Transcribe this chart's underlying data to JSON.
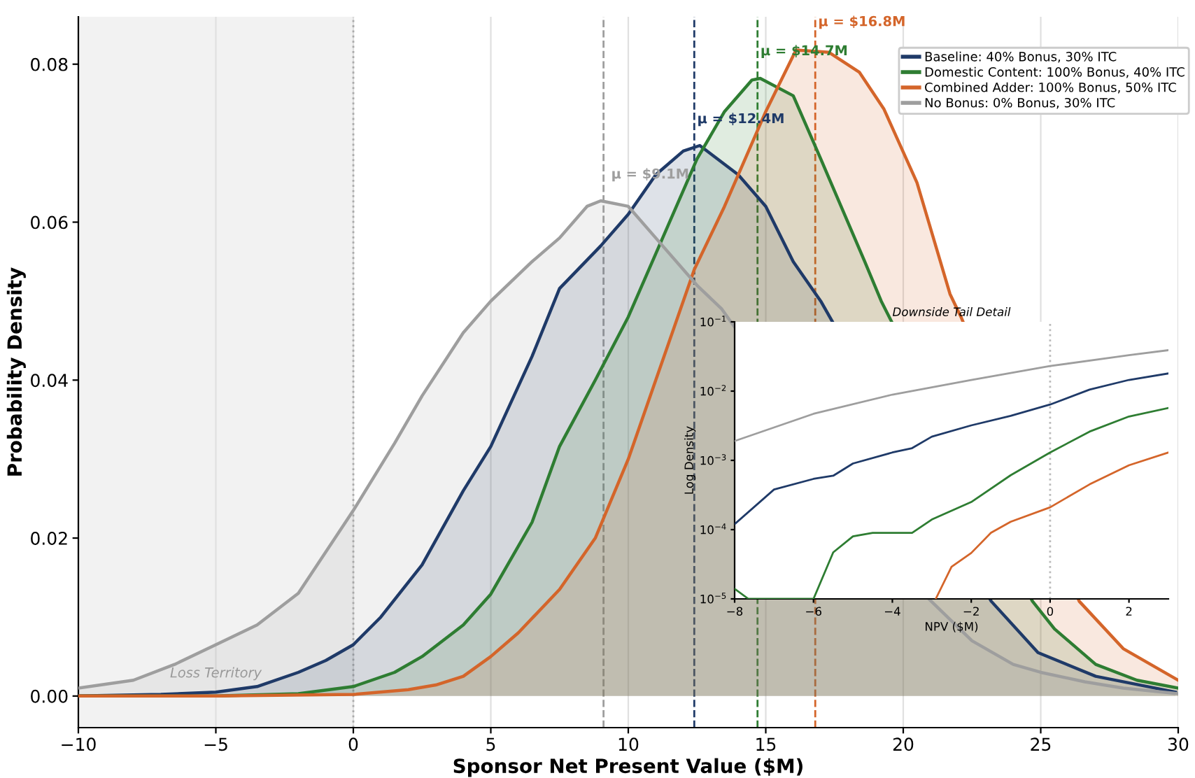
{
  "chart_data": [
    {
      "type": "area",
      "xlabel": "Sponsor Net Present Value ($M)",
      "ylabel": "Probability Density",
      "xlim": [
        -10,
        30
      ],
      "ylim": [
        -0.004,
        0.086
      ],
      "xticks": [
        {
          "value": -10,
          "label": "−10"
        },
        {
          "value": -5,
          "label": "−5"
        },
        0,
        5,
        10,
        15,
        20,
        25,
        30
      ],
      "yticks": [
        {
          "value": 0.0,
          "label": "0.00"
        },
        {
          "value": 0.02,
          "label": "0.02"
        },
        {
          "value": 0.04,
          "label": "0.04"
        },
        {
          "value": 0.06,
          "label": "0.06"
        },
        {
          "value": 0.08,
          "label": "0.08"
        }
      ],
      "grid": "x",
      "legend": "top right",
      "bands": [
        {
          "axis": "x",
          "from": -10,
          "to": 0,
          "label": "Loss Territory",
          "color": "#f2f2f2"
        }
      ],
      "ref_lines": [
        {
          "axis": "x",
          "value": 0,
          "color": "#aaaaaa",
          "line_style": "dotted"
        },
        {
          "axis": "x",
          "value": 9.1,
          "color": "#9e9e9e",
          "line_style": "dashed"
        },
        {
          "axis": "x",
          "value": 12.4,
          "color": "#1f3a68",
          "line_style": "dashed"
        },
        {
          "axis": "x",
          "value": 14.7,
          "color": "#2e7d32",
          "line_style": "dashed"
        },
        {
          "axis": "x",
          "value": 16.8,
          "color": "#d4652a",
          "line_style": "dashed"
        }
      ],
      "annotations": [
        {
          "text": "μ = $9.1M",
          "x": 9.1,
          "y": 0.066
        },
        {
          "text": "μ = $12.4M",
          "x": 12.4,
          "y": 0.073
        },
        {
          "text": "μ = $14.7M",
          "x": 14.7,
          "y": 0.0816
        },
        {
          "text": "μ = $16.8M",
          "x": 16.8,
          "y": 0.0853
        }
      ],
      "series": [
        {
          "name": "Baseline: 40% Bonus, 30% ITC",
          "color": "#1f3a68",
          "x": [
            -10,
            -7,
            -5,
            -3.5,
            -2,
            -1,
            0,
            1,
            2.5,
            4,
            5,
            6.5,
            7.5,
            9,
            10,
            11,
            12,
            12.6,
            14,
            15,
            16,
            17,
            17.4,
            19,
            20,
            21.5,
            23.2,
            24.9,
            27,
            29.9
          ],
          "values": [
            0,
            0.0002,
            0.0005,
            0.0012,
            0.003,
            0.0045,
            0.0065,
            0.01,
            0.0166,
            0.026,
            0.0316,
            0.043,
            0.0516,
            0.057,
            0.061,
            0.066,
            0.069,
            0.0697,
            0.066,
            0.062,
            0.055,
            0.05,
            null,
            null,
            null,
            null,
            0.012,
            0.0055,
            0.0025,
            0.0005
          ]
        },
        {
          "name": "Domestic Content: 100% Bonus, 40% ITC",
          "color": "#2e7d32",
          "x": [
            -10,
            -5,
            -2,
            0,
            1.5,
            2.5,
            4,
            5,
            6.5,
            7.5,
            8.8,
            10,
            11,
            12,
            12.5,
            13.5,
            14.5,
            14.8,
            16,
            17,
            18.6,
            19.2,
            19.6,
            21,
            22.5,
            24.7,
            25.5,
            27,
            28.5,
            30
          ],
          "values": [
            0,
            0,
            0.0003,
            0.0012,
            0.003,
            0.005,
            0.009,
            0.0129,
            0.022,
            0.0316,
            0.04,
            0.048,
            0.056,
            0.064,
            0.068,
            0.074,
            0.078,
            0.0782,
            0.076,
            0.068,
            0.055,
            0.05,
            null,
            null,
            null,
            0.012,
            0.0085,
            0.004,
            0.002,
            0.001
          ]
        },
        {
          "name": "Combined Adder: 100% Bonus, 50% ITC",
          "color": "#d4652a",
          "x": [
            -10,
            -5,
            0,
            2,
            3,
            4,
            5,
            6,
            7.5,
            8.8,
            10,
            11,
            12.4,
            13.5,
            15,
            16.1,
            17.3,
            18.4,
            19.3,
            20.5,
            21.7,
            22.1,
            23,
            24,
            25,
            26.4,
            28,
            30
          ],
          "values": [
            0,
            0,
            0.0002,
            0.0008,
            0.0014,
            0.0025,
            0.005,
            0.008,
            0.0135,
            0.02,
            0.03,
            0.04,
            0.054,
            0.062,
            0.074,
            0.0818,
            0.0815,
            0.079,
            0.0743,
            0.065,
            0.0509,
            0.048,
            null,
            null,
            null,
            0.012,
            0.006,
            0.002
          ]
        },
        {
          "name": "No Bonus: 0% Bonus, 30% ITC",
          "color": "#9e9e9e",
          "x": [
            -10,
            -8,
            -6.5,
            -5,
            -3.5,
            -2,
            0,
            1.5,
            2.5,
            4,
            5,
            6.5,
            7.5,
            8.5,
            9,
            10,
            11,
            12.5,
            13.4,
            14,
            15,
            17,
            19,
            20.9,
            22.5,
            24,
            25,
            26.6,
            28,
            30
          ],
          "values": [
            0.001,
            0.002,
            0.004,
            0.0065,
            0.009,
            0.013,
            0.0235,
            0.032,
            0.038,
            0.046,
            0.05,
            0.055,
            0.058,
            0.062,
            0.0627,
            0.062,
            0.058,
            0.052,
            0.049,
            null,
            null,
            null,
            null,
            0.0124,
            0.007,
            0.004,
            0.003,
            0.0018,
            0.001,
            0.0003
          ]
        }
      ]
    },
    {
      "type": "line",
      "title": "Downside Tail Detail",
      "xlabel": "NPV ($M)",
      "ylabel": "Log Density",
      "log": "y",
      "xlim": [
        -8,
        3
      ],
      "ylim": [
        1e-05,
        0.1
      ],
      "xticks": [
        {
          "value": -8,
          "label": "−8"
        },
        {
          "value": -6,
          "label": "−6"
        },
        {
          "value": -4,
          "label": "−4"
        },
        {
          "value": -2,
          "label": "−2"
        },
        0,
        2
      ],
      "yticks": [
        {
          "value": 1e-05,
          "label": "10$^{−5}$"
        },
        {
          "value": 0.0001,
          "label": "10$^{−4}$"
        },
        {
          "value": 0.001,
          "label": "10$^{−3}$"
        },
        {
          "value": 0.01,
          "label": "10$^{−2}$"
        },
        {
          "value": 0.1,
          "label": "10$^{−1}$"
        }
      ],
      "ref_lines": [
        {
          "axis": "x",
          "value": 0,
          "color": "#bbbbbb",
          "line_style": "dotted"
        }
      ],
      "series": [
        {
          "color": "#1f3a68",
          "x": [
            -8,
            -7,
            -6,
            -5.5,
            -5,
            -4,
            -3.5,
            -3,
            -2,
            -1,
            0,
            1,
            2,
            3
          ],
          "values": [
            0.00012,
            0.00038,
            0.00054,
            0.0006,
            0.0009,
            0.0013,
            0.0015,
            0.0022,
            0.0032,
            0.0044,
            0.0064,
            0.0105,
            0.0145,
            0.018
          ]
        },
        {
          "color": "#2e7d32",
          "x": [
            -8,
            -7.65,
            -6,
            -5.5,
            -5,
            -4.5,
            -4,
            -3.5,
            -3,
            -2,
            -1,
            0,
            1,
            2,
            3
          ],
          "values": [
            1.4e-05,
            1e-05,
            1e-05,
            4.7e-05,
            8e-05,
            9e-05,
            9e-05,
            9e-05,
            0.00014,
            0.00025,
            0.00061,
            0.0013,
            0.0026,
            0.0043,
            0.0057
          ]
        },
        {
          "color": "#d4652a",
          "x": [
            -2.9,
            -2.5,
            -2,
            -1.5,
            -1,
            0,
            1,
            2,
            3
          ],
          "values": [
            1e-05,
            2.9e-05,
            4.6e-05,
            9e-05,
            0.00013,
            0.00021,
            0.00045,
            0.00085,
            0.0013
          ]
        },
        {
          "color": "#9e9e9e",
          "x": [
            -8,
            -6,
            -4,
            -2,
            0,
            2,
            3
          ],
          "values": [
            0.0019,
            0.0047,
            0.0089,
            0.0145,
            0.023,
            0.033,
            0.039
          ]
        }
      ]
    }
  ]
}
